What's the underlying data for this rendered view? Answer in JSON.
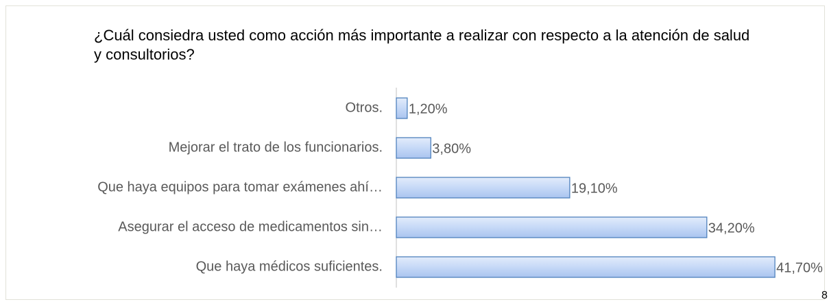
{
  "chart_data": {
    "type": "bar",
    "orientation": "horizontal",
    "title": "¿Cuál consiedra usted como acción más importante a realizar con respecto a la atención de salud y consultorios?",
    "categories": [
      "Otros.",
      "Mejorar el trato de los funcionarios.",
      "Que haya equipos para tomar exámenes ahí…",
      "Asegurar el acceso de medicamentos sin…",
      "Que haya médicos suficientes."
    ],
    "values": [
      1.2,
      3.8,
      19.1,
      34.2,
      41.7
    ],
    "value_labels": [
      "1,20%",
      "3,80%",
      "19,10%",
      "34,20%",
      "41,70%"
    ],
    "color": "#c6d9f7",
    "edge_color": "#4f81bd"
  },
  "page_number": "8"
}
